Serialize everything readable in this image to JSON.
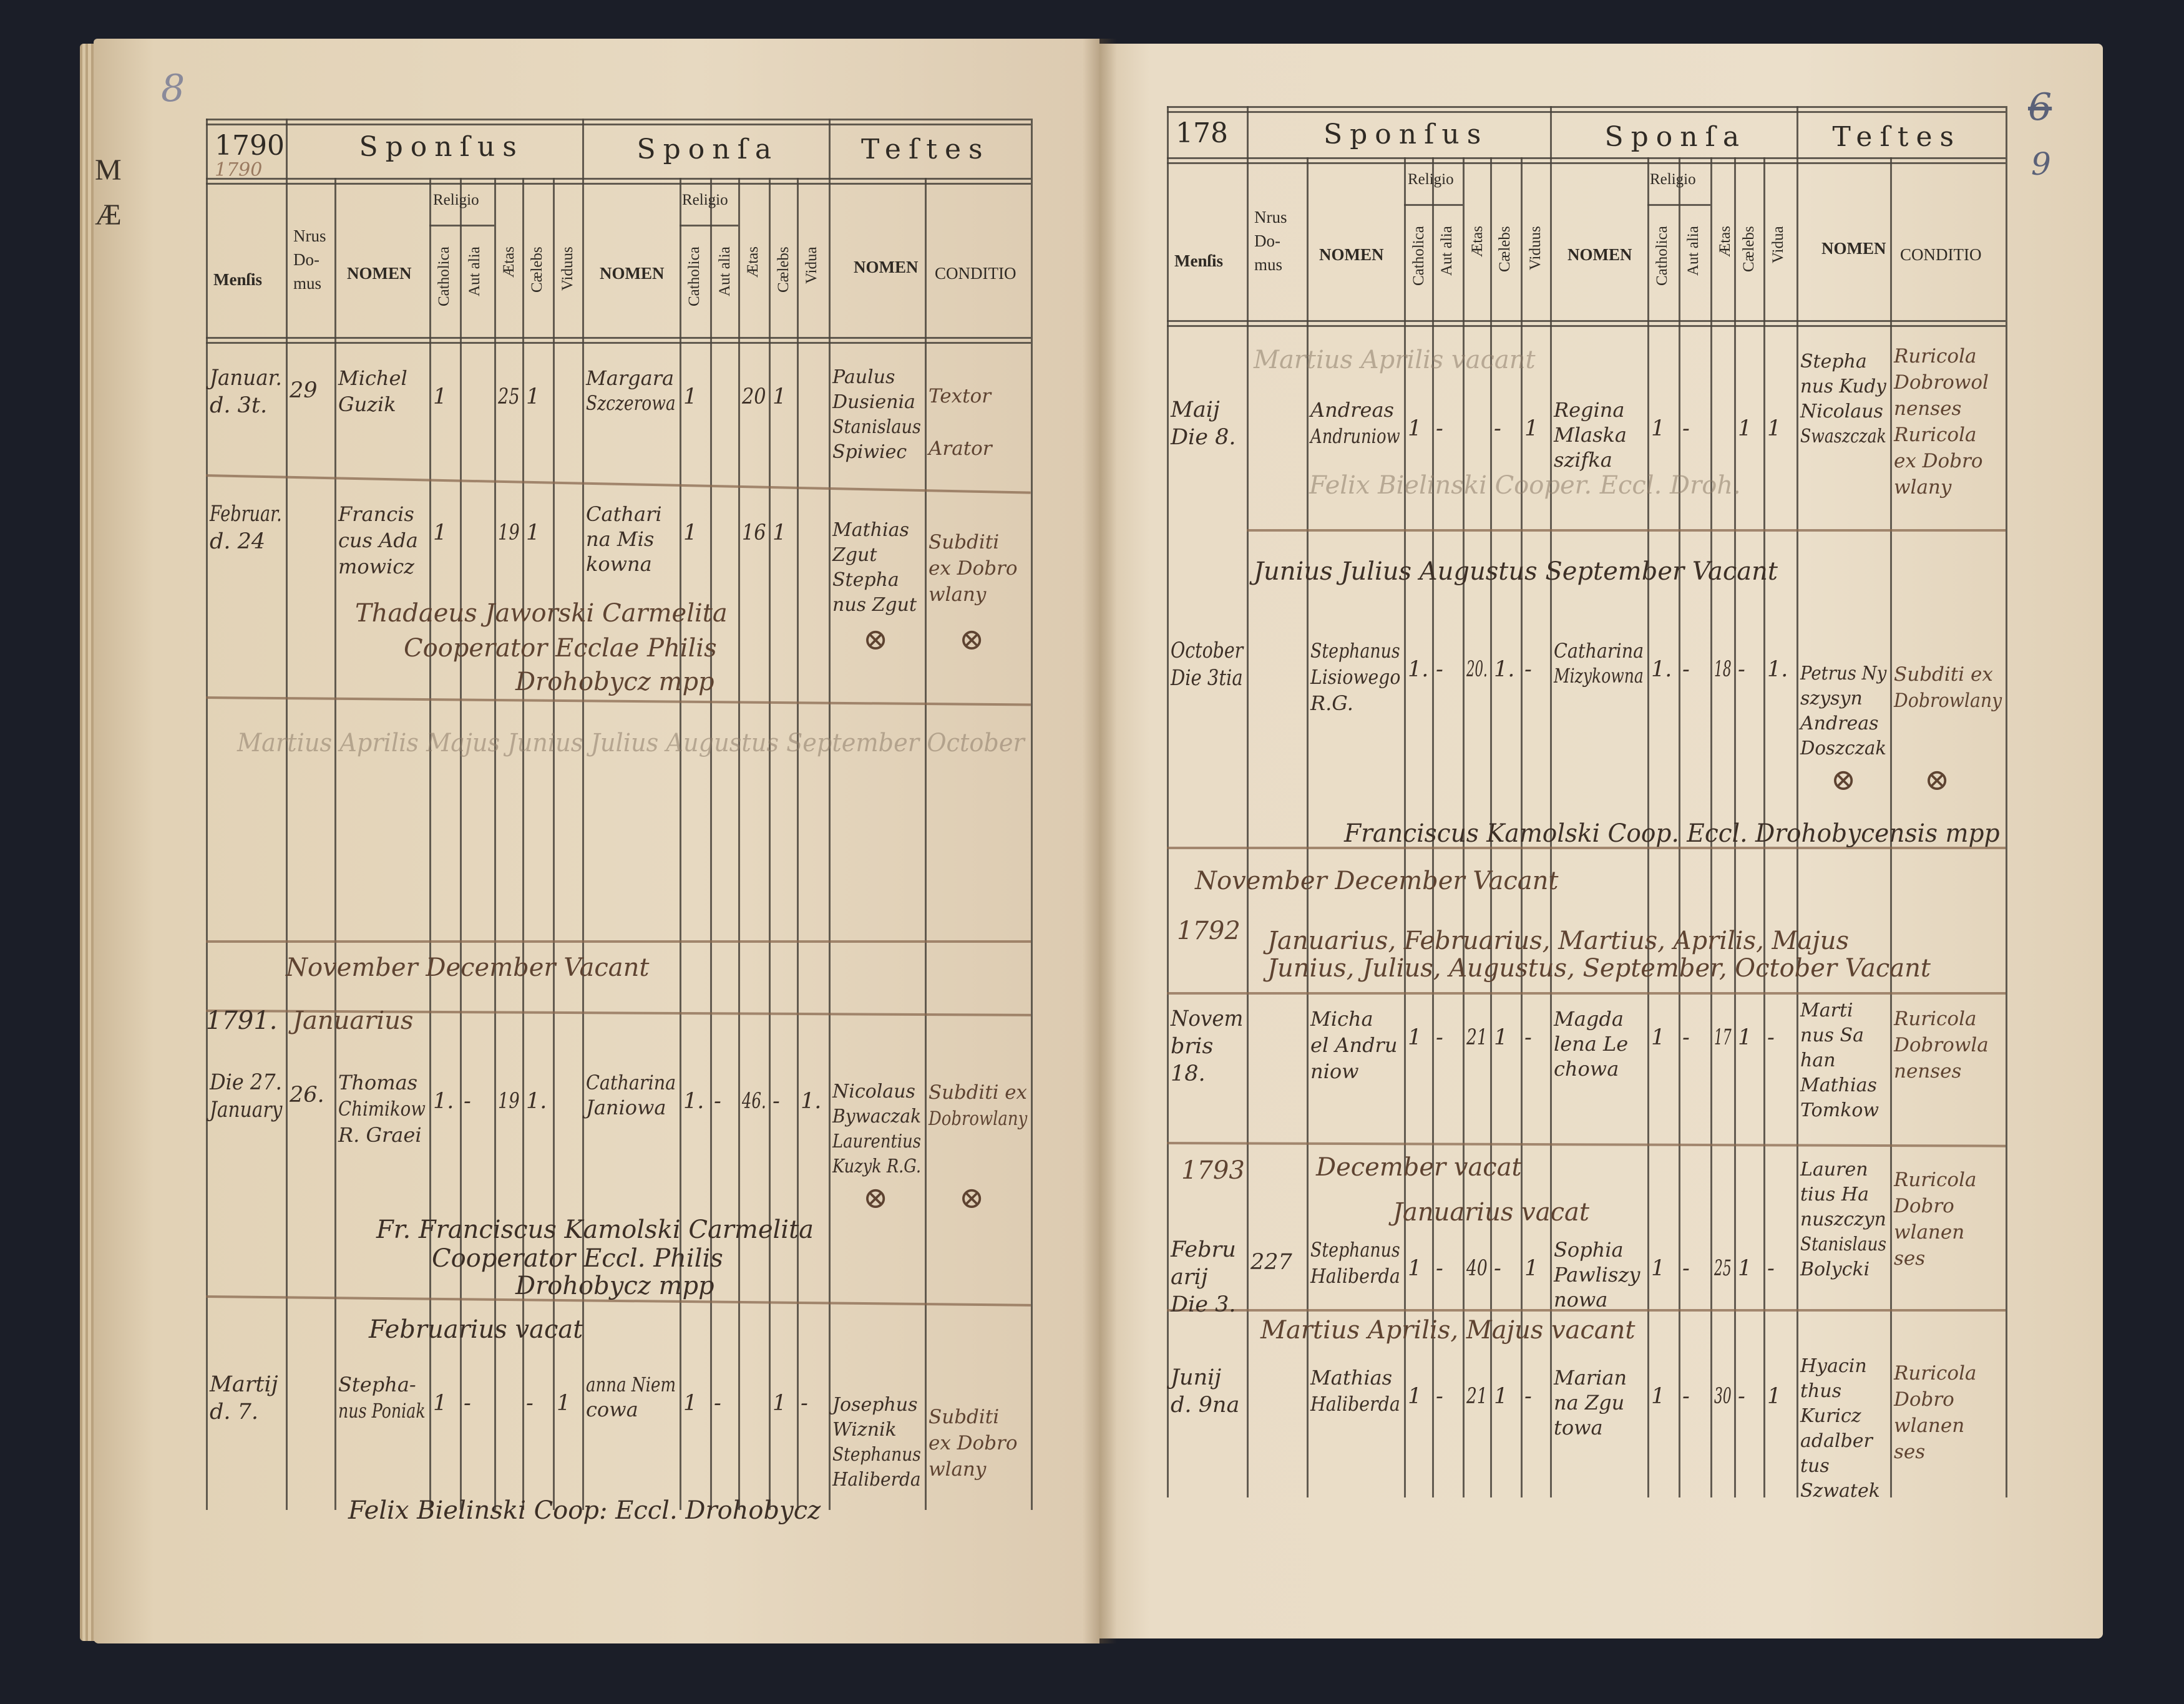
{
  "left_page": {
    "page_number_handwritten": "8",
    "edge_fragments": [
      "M",
      "Æ"
    ],
    "header": {
      "year": "1790",
      "year_handwritten": "1790",
      "sponsus": "Sponſus",
      "sponsa": "Sponſa",
      "testes": "Teſtes",
      "mensis": "Menſis",
      "nrus_domus": [
        "Nrus",
        "Do-",
        "mus"
      ],
      "sponsus_nomen": "NOMEN",
      "sponsus_religio": "Religio",
      "sponsus_catholica": "Catholica",
      "sponsus_aut_alia": "Aut alia",
      "sponsus_aetas": "Ætas",
      "sponsus_caelebs": "Cælebs",
      "sponsus_viduus": "Viduus",
      "sponsa_nomen": "NOMEN",
      "sponsa_religio": "Religio",
      "sponsa_catholica": "Catholica",
      "sponsa_aut_alia": "Aut alia",
      "sponsa_aetas": "Ætas",
      "sponsa_caelebs": "Cælebs",
      "sponsa_vidua": "Vidua",
      "testes_nomen": "NOMEN",
      "testes_conditio": "CONDITIO"
    },
    "rows": [
      {
        "mensis": [
          "Januar.",
          "d. 3t."
        ],
        "nrus": "29",
        "sponsus": [
          "Michel",
          "Guzik"
        ],
        "s_cath": "1",
        "s_aut": "",
        "s_aetas": "25",
        "s_cael": "1",
        "s_vid": "",
        "sponsa": [
          "Margara",
          "Szczerowa"
        ],
        "a_cath": "1",
        "a_aut": "",
        "a_aetas": "20",
        "a_cael": "1",
        "a_vid": "",
        "testes": [
          "Paulus",
          "Dusienia",
          "Stanislaus",
          "Spiwiec"
        ],
        "conditio": [
          "Textor",
          "",
          "Arator"
        ],
        "marks": []
      },
      {
        "mensis": [
          "Februar.",
          "d. 24"
        ],
        "nrus": "",
        "sponsus": [
          "Francis",
          "cus Ada",
          "mowicz"
        ],
        "s_cath": "1",
        "s_aut": "",
        "s_aetas": "19",
        "s_cael": "1",
        "s_vid": "",
        "sponsa": [
          "Cathari",
          "na Mis",
          "kowna"
        ],
        "a_cath": "1",
        "a_aut": "",
        "a_aetas": "16",
        "a_cael": "1",
        "a_vid": "",
        "testes": [
          "Mathias",
          "Zgut",
          "Stepha",
          "nus Zgut"
        ],
        "conditio": [
          "Subditi",
          "ex Dobro",
          "wlany"
        ],
        "marks": [
          "⊗",
          "⊗"
        ]
      },
      {
        "mensis": [
          "Die 27.",
          "January"
        ],
        "nrus": "26.",
        "sponsus": [
          "Thomas",
          "Chimikow",
          "R. Graei"
        ],
        "s_cath": "1.",
        "s_aut": "-",
        "s_aetas": "19",
        "s_cael": "1.",
        "s_vid": "",
        "sponsa": [
          "Catharina",
          "Janiowa"
        ],
        "a_cath": "1.",
        "a_aut": "-",
        "a_aetas": "46.",
        "a_cael": "-",
        "a_vid": "1.",
        "testes": [
          "Nicolaus",
          "Bywaczak",
          "Laurentius",
          "Kuzyk R.G."
        ],
        "conditio": [
          "Subditi ex",
          "Dobrowlany"
        ],
        "marks": [
          "⊗",
          "⊗"
        ]
      },
      {
        "mensis": [
          "Martij",
          "d. 7."
        ],
        "nrus": "",
        "sponsus": [
          "Stepha-",
          "nus Poniak"
        ],
        "s_cath": "1",
        "s_aut": "-",
        "s_aetas": "",
        "s_cael": "-",
        "s_vid": "1",
        "sponsa": [
          "anna Niem",
          "cowa"
        ],
        "a_cath": "1",
        "a_aut": "-",
        "a_aetas": "",
        "a_cael": "1",
        "a_vid": "-",
        "testes": [
          "Josephus",
          "Wiznik",
          "Stephanus",
          "Haliberda"
        ],
        "conditio": [
          "Subditi",
          "ex Dobro",
          "wlany"
        ],
        "marks": []
      }
    ],
    "notes": [
      "Martius Aprilis Majus Junius Julius Augustus September October",
      "November December Vacant",
      "1791.",
      "Januarius",
      "Thadaeus Jaworski Carmelita",
      "Cooperator Ecclae Philis",
      "Drohobycz mpp",
      "Fr. Franciscus Kamolski Carmelita",
      "Cooperator Eccl. Philis",
      "Drohobycz mpp",
      "Februarius vacat",
      "Felix Bielinski Coop: Eccl. Drohobycz"
    ]
  },
  "right_page": {
    "page_number_crossed": "6",
    "page_number_handwritten": "9",
    "header": {
      "year": "178",
      "sponsus": "Sponſus",
      "sponsa": "Sponſa",
      "testes": "Teſtes",
      "mensis": "Menſis",
      "nrus_domus": [
        "Nrus",
        "Do-",
        "mus"
      ],
      "sponsus_nomen": "NOMEN",
      "sponsus_religio": "Religio",
      "sponsus_catholica": "Catholica",
      "sponsus_aut_alia": "Aut alia",
      "sponsus_aetas": "Ætas",
      "sponsus_caelebs": "Cælebs",
      "sponsus_viduus": "Viduus",
      "sponsa_nomen": "NOMEN",
      "sponsa_religio": "Religio",
      "sponsa_catholica": "Catholica",
      "sponsa_aut_alia": "Aut alia",
      "sponsa_aetas": "Ætas",
      "sponsa_caelebs": "Cælebs",
      "sponsa_vidua": "Vidua",
      "testes_nomen": "NOMEN",
      "testes_conditio": "CONDITIO"
    },
    "rows": [
      {
        "mensis": [
          "Maij",
          "Die 8."
        ],
        "nrus": "",
        "sponsus": [
          "Andreas",
          "Andruniow"
        ],
        "s_cath": "1",
        "s_aut": "-",
        "s_aetas": "",
        "s_cael": "-",
        "s_vid": "1",
        "sponsa": [
          "Regina",
          "Mlaska",
          "szifka"
        ],
        "a_cath": "1",
        "a_aut": "-",
        "a_aetas": "",
        "a_cael": "1",
        "a_vid": "1",
        "testes": [
          "Stepha",
          "nus Kudy",
          "Nicolaus",
          "Swaszczak"
        ],
        "conditio": [
          "Ruricola",
          "Dobrowol",
          "nenses",
          "Ruricola",
          "ex Dobro",
          "wlany"
        ],
        "marks": []
      },
      {
        "mensis": [
          "October",
          "Die 3tia"
        ],
        "nrus": "",
        "sponsus": [
          "Stephanus",
          "Lisiowego",
          "R.G."
        ],
        "s_cath": "1.",
        "s_aut": "-",
        "s_aetas": "20.",
        "s_cael": "1.",
        "s_vid": "-",
        "sponsa": [
          "Catharina",
          "Mizykowna"
        ],
        "a_cath": "1.",
        "a_aut": "-",
        "a_aetas": "18",
        "a_cael": "-",
        "a_vid": "1.",
        "testes": [
          "Petrus Ny",
          "szysyn",
          "Andreas",
          "Doszczak"
        ],
        "conditio": [
          "Subditi ex",
          "Dobrowlany"
        ],
        "marks": [
          "⊗",
          "⊗"
        ]
      },
      {
        "mensis": [
          "Novem",
          "bris",
          "18."
        ],
        "nrus": "",
        "sponsus": [
          "Micha",
          "el Andru",
          "niow"
        ],
        "s_cath": "1",
        "s_aut": "-",
        "s_aetas": "21",
        "s_cael": "1",
        "s_vid": "-",
        "sponsa": [
          "Magda",
          "lena Le",
          "chowa"
        ],
        "a_cath": "1",
        "a_aut": "-",
        "a_aetas": "17",
        "a_cael": "1",
        "a_vid": "-",
        "testes": [
          "Marti",
          "nus Sa",
          "han",
          "Mathias",
          "Tomkow"
        ],
        "conditio": [
          "Ruricola",
          "Dobrowla",
          "nenses"
        ],
        "marks": []
      },
      {
        "mensis": [
          "Febru",
          "arij",
          "Die 3."
        ],
        "nrus": "227",
        "sponsus": [
          "Stephanus",
          "Haliberda"
        ],
        "s_cath": "1",
        "s_aut": "-",
        "s_aetas": "40",
        "s_cael": "-",
        "s_vid": "1",
        "sponsa": [
          "Sophia",
          "Pawliszy",
          "nowa"
        ],
        "a_cath": "1",
        "a_aut": "-",
        "a_aetas": "25",
        "a_cael": "1",
        "a_vid": "-",
        "testes": [
          "Lauren",
          "tius Ha",
          "nuszczyn",
          "Stanislaus",
          "Bolycki"
        ],
        "conditio": [
          "Ruricola",
          "Dobro",
          "wlanen",
          "ses"
        ],
        "marks": []
      },
      {
        "mensis": [
          "Junij",
          "d. 9na"
        ],
        "nrus": "",
        "sponsus": [
          "Mathias",
          "Haliberda"
        ],
        "s_cath": "1",
        "s_aut": "-",
        "s_aetas": "21",
        "s_cael": "1",
        "s_vid": "-",
        "sponsa": [
          "Marian",
          "na Zgu",
          "towa"
        ],
        "a_cath": "1",
        "a_aut": "-",
        "a_aetas": "30",
        "a_cael": "-",
        "a_vid": "1",
        "testes": [
          "Hyacin",
          "thus",
          "Kuricz",
          "adalber",
          "tus",
          "Szwatek"
        ],
        "conditio": [
          "Ruricola",
          "Dobro",
          "wlanen",
          "ses"
        ],
        "marks": []
      }
    ],
    "notes": [
      "Martius Aprilis vacant",
      "Felix Bielinski Cooper. Eccl. Droh.",
      "Junius Julius Augustus September Vacant",
      "Franciscus Kamolski Coop. Eccl. Drohobycensis mpp",
      "November December Vacant",
      "1792",
      "Januarius, Februarius, Martius, Aprilis, Majus",
      "Junius, Julius, Augustus, September, October Vacant",
      "1793",
      "December vacat",
      "Januarius vacat",
      "Martius Aprilis, Majus vacant"
    ]
  },
  "colors": {
    "paper": "#e7d9c1",
    "ink_print": "#2f2a24",
    "ink_hand": "#5e4331",
    "background": "#1b1e28"
  }
}
